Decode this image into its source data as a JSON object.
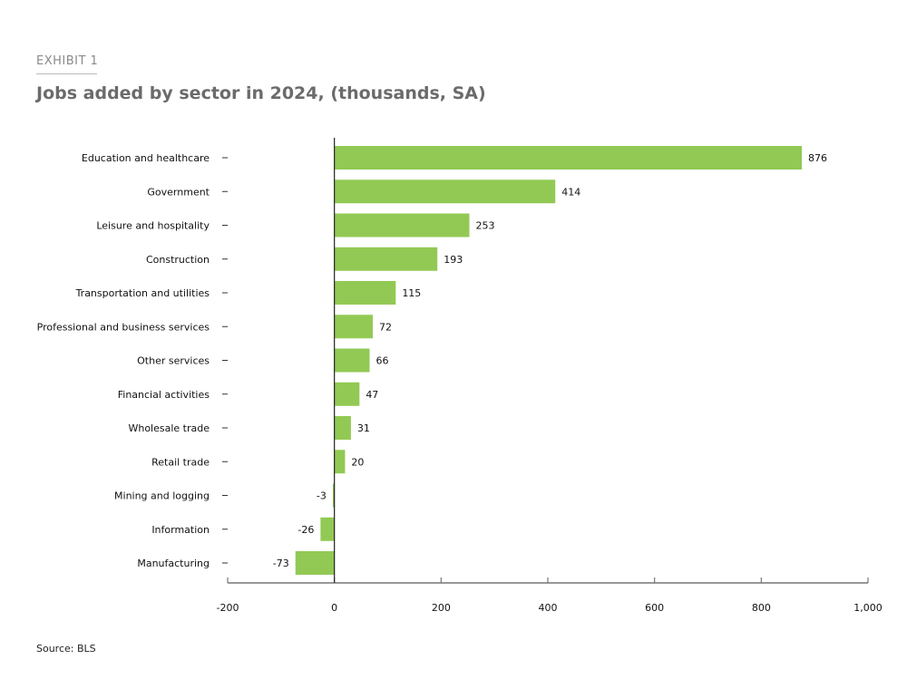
{
  "header": {
    "exhibit": "EXHIBIT 1",
    "title": "Jobs added by sector in 2024, (thousands, SA)"
  },
  "footer": {
    "source": "Source: BLS"
  },
  "colors": {
    "bar": "#92C954",
    "axis": "#777777",
    "zero_line": "#222222"
  },
  "chart_data": {
    "type": "bar",
    "orientation": "horizontal",
    "title": "Jobs added by sector in 2024, (thousands, SA)",
    "xlabel": "",
    "ylabel": "",
    "categories": [
      "Education and healthcare",
      "Government",
      "Leisure and hospitality",
      "Construction",
      "Transportation and utilities",
      "Professional and business services",
      "Other services",
      "Financial activities",
      "Wholesale trade",
      "Retail trade",
      "Mining and logging",
      "Information",
      "Manufacturing"
    ],
    "values": [
      876,
      414,
      253,
      193,
      115,
      72,
      66,
      47,
      31,
      20,
      -3,
      -26,
      -73
    ],
    "data_labels": [
      "876",
      "414",
      "253",
      "193",
      "115",
      "72",
      "66",
      "47",
      "31",
      "20",
      "-3",
      "-26",
      "-73"
    ],
    "xlim": [
      -200,
      1000
    ],
    "xticks": [
      -200,
      0,
      200,
      400,
      600,
      800,
      1000
    ],
    "xtick_labels": [
      "-200",
      "0",
      "200",
      "400",
      "600",
      "800",
      "1,000"
    ],
    "grid": false,
    "legend": "none"
  }
}
